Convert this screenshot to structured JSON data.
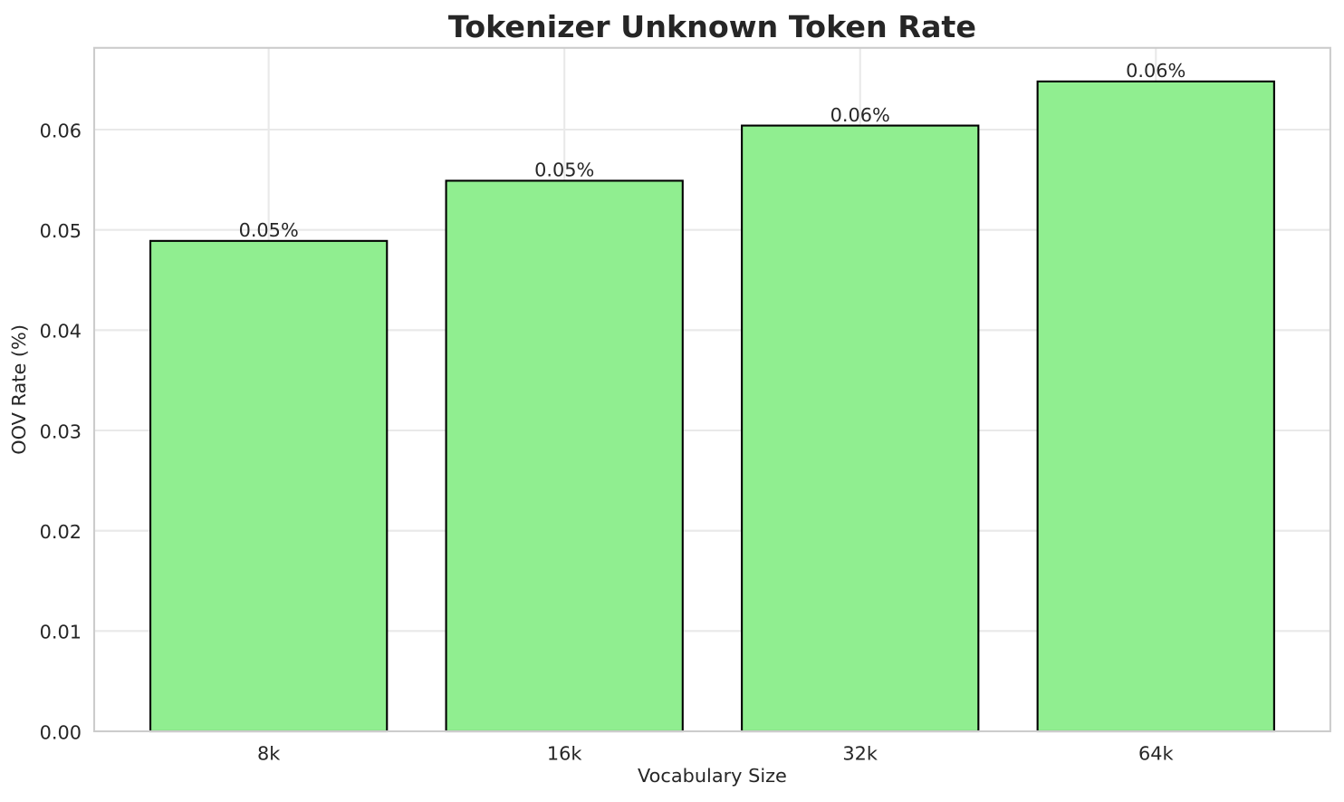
{
  "figure": {
    "background": "#ffffff"
  },
  "chart_data": {
    "type": "bar",
    "title": "Tokenizer Unknown Token Rate",
    "xlabel": "Vocabulary Size",
    "ylabel": "OOV Rate (%)",
    "categories": [
      "8k",
      "16k",
      "32k",
      "64k"
    ],
    "values": [
      0.0489,
      0.0549,
      0.0604,
      0.0648
    ],
    "bar_labels": [
      "0.05%",
      "0.05%",
      "0.06%",
      "0.06%"
    ],
    "ylim": [
      0,
      0.06815
    ],
    "yticks": [
      0,
      0.01,
      0.02,
      0.03,
      0.04,
      0.05,
      0.06
    ],
    "ytick_labels": [
      "0.00",
      "0.01",
      "0.02",
      "0.03",
      "0.04",
      "0.05",
      "0.06"
    ],
    "grid": true,
    "legend_position": "none",
    "colors": {
      "bar_fill": "#90ee90",
      "bar_edge": "#000000",
      "grid": "#e9e9e9",
      "spine": "#cccccc",
      "text": "#262626",
      "background": "#ffffff"
    }
  }
}
